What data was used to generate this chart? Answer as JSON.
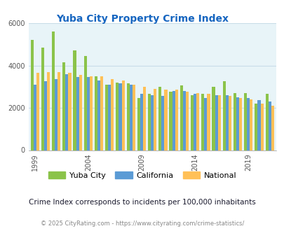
{
  "title": "Yuba City Property Crime Index",
  "subtitle": "Crime Index corresponds to incidents per 100,000 inhabitants",
  "footer": "© 2025 CityRating.com - https://www.cityrating.com/crime-statistics/",
  "years": [
    1999,
    2000,
    2001,
    2002,
    2003,
    2004,
    2005,
    2006,
    2007,
    2008,
    2009,
    2010,
    2011,
    2012,
    2013,
    2014,
    2015,
    2016,
    2017,
    2018,
    2019,
    2020,
    2021
  ],
  "yuba_city": [
    5200,
    4850,
    5600,
    4150,
    4700,
    4450,
    3500,
    3100,
    3200,
    3150,
    2450,
    2650,
    3000,
    2750,
    3050,
    2600,
    2650,
    3000,
    3250,
    2700,
    2700,
    2200,
    2650
  ],
  "california": [
    3100,
    3250,
    3350,
    3600,
    3450,
    3450,
    3300,
    3100,
    3150,
    3100,
    2650,
    2600,
    2550,
    2800,
    2800,
    2650,
    2450,
    2600,
    2600,
    2500,
    2450,
    2350,
    2300
  ],
  "national": [
    3650,
    3700,
    3700,
    3650,
    3550,
    3500,
    3500,
    3350,
    3300,
    3100,
    3000,
    2900,
    2850,
    2850,
    2750,
    2700,
    2650,
    2600,
    2550,
    2450,
    2400,
    2200,
    2100
  ],
  "bar_colors": {
    "yuba_city": "#8BC34A",
    "california": "#5B9BD5",
    "national": "#FFC057"
  },
  "ylim": [
    0,
    6000
  ],
  "yticks": [
    0,
    2000,
    4000,
    6000
  ],
  "bg_color": "#E8F4F8",
  "grid_color": "#C8DDE8",
  "title_color": "#1565C0",
  "subtitle_color": "#1a1a2e",
  "footer_color": "#888888",
  "legend_labels": [
    "Yuba City",
    "California",
    "National"
  ],
  "xtick_years": [
    1999,
    2004,
    2009,
    2014,
    2019
  ],
  "bar_width": 0.27
}
